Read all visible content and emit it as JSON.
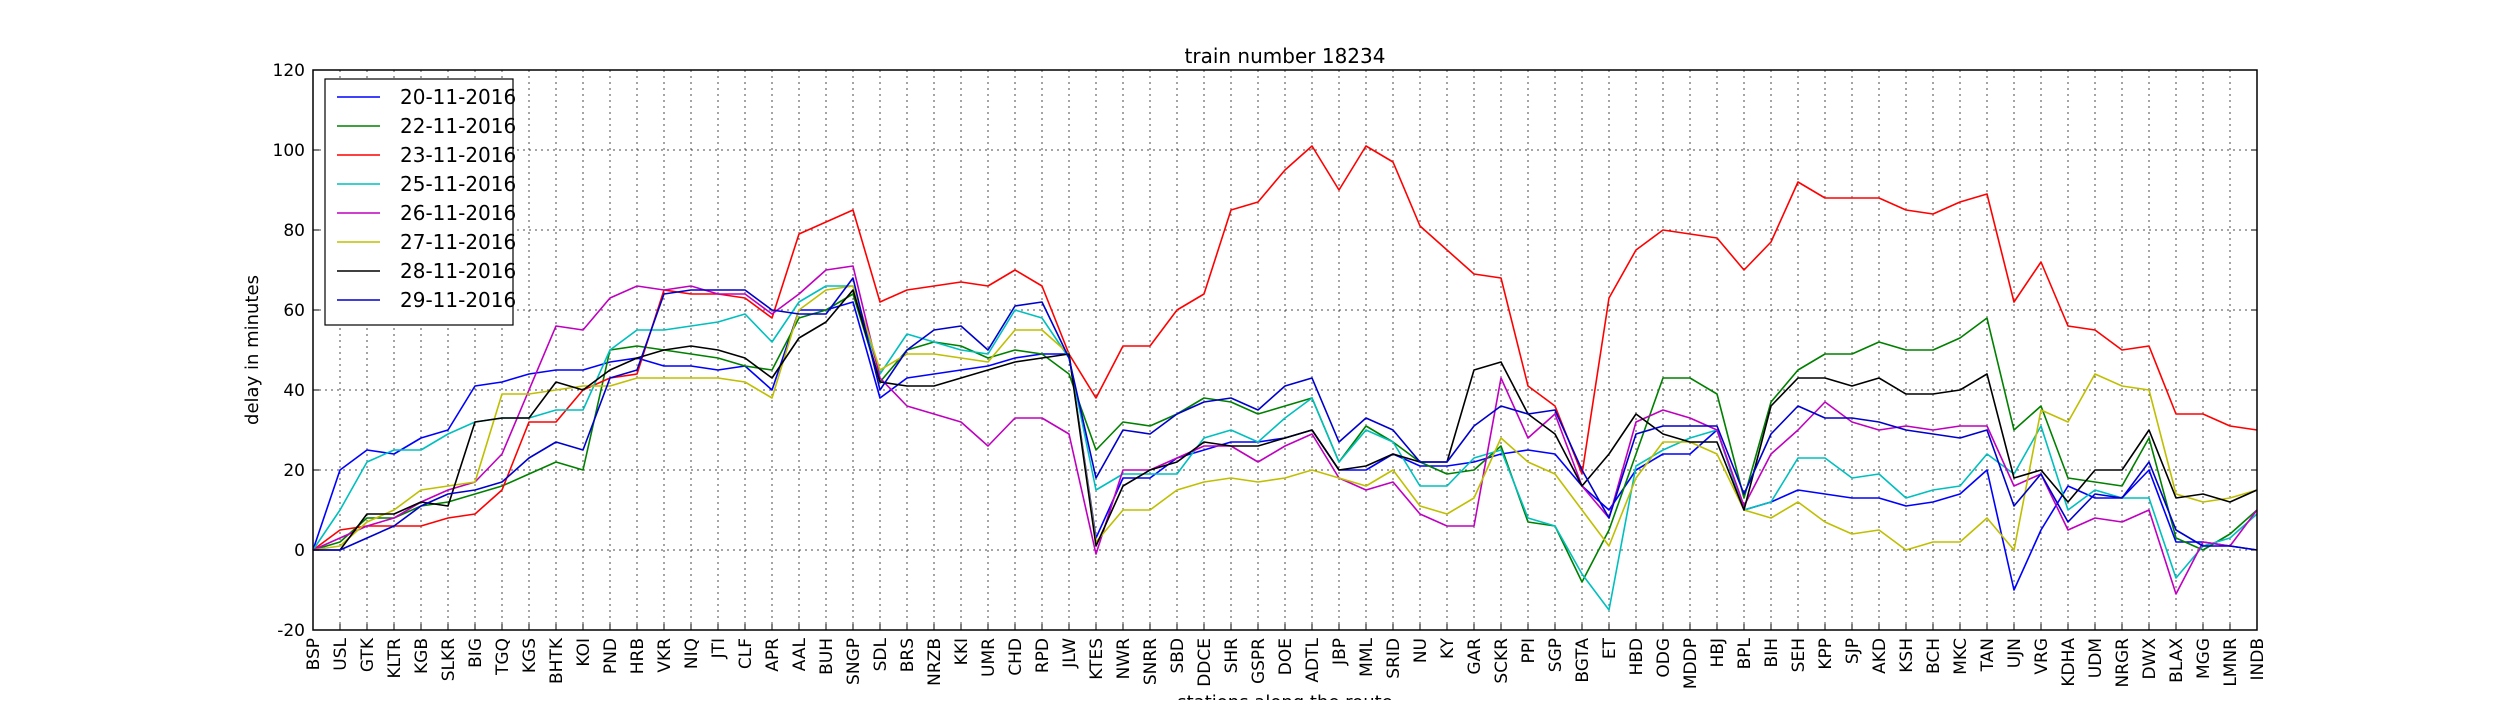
{
  "chart_data": {
    "type": "line",
    "title": "train number 18234",
    "xlabel": "stations along the route",
    "ylabel": "delay in minutes",
    "ylim": [
      -20,
      120
    ],
    "yticks": [
      -20,
      0,
      20,
      40,
      60,
      80,
      100,
      120
    ],
    "grid": true,
    "legend_position": "top-left",
    "categories": [
      "BSP",
      "USL",
      "GTK",
      "KLTR",
      "KGB",
      "SLKR",
      "BIG",
      "TGQ",
      "KGS",
      "BHTK",
      "KOI",
      "PND",
      "HRB",
      "VKR",
      "NIQ",
      "JTI",
      "CLF",
      "APR",
      "AAL",
      "BUH",
      "SNGP",
      "SDL",
      "BRS",
      "NRZB",
      "KKI",
      "UMR",
      "CHD",
      "RPD",
      "JLW",
      "KTES",
      "NWR",
      "SNRR",
      "SBD",
      "DDCE",
      "SHR",
      "GSPR",
      "DOE",
      "ADTL",
      "JBP",
      "MML",
      "SRID",
      "NU",
      "KY",
      "GAR",
      "SCKR",
      "PPI",
      "SGP",
      "BGTA",
      "ET",
      "HBD",
      "ODG",
      "MDDP",
      "HBJ",
      "BPL",
      "BIH",
      "SEH",
      "KPP",
      "SJP",
      "AKD",
      "KSH",
      "BCH",
      "MKC",
      "TAN",
      "UJN",
      "VRG",
      "KDHA",
      "UDM",
      "NRGR",
      "DWX",
      "BLAX",
      "MGG",
      "LMNR",
      "INDB"
    ],
    "series": [
      {
        "name": "20-11-2016",
        "color": "#0000ff",
        "values": [
          0,
          20,
          25,
          24,
          28,
          30,
          41,
          42,
          44,
          45,
          45,
          47,
          48,
          46,
          46,
          45,
          46,
          40,
          60,
          60,
          62,
          38,
          43,
          44,
          45,
          46,
          48,
          49,
          49,
          3,
          18,
          18,
          23,
          25,
          27,
          27,
          28,
          30,
          20,
          20,
          24,
          21,
          21,
          22,
          24,
          25,
          24,
          16,
          10,
          20,
          24,
          24,
          30,
          10,
          12,
          15,
          14,
          13,
          13,
          11,
          12,
          14,
          20,
          -10,
          5,
          16,
          13,
          13,
          20,
          2,
          2,
          1,
          0
        ]
      },
      {
        "name": "22-11-2016",
        "color": "#008000",
        "values": [
          0,
          2,
          8,
          8,
          11,
          12,
          14,
          16,
          19,
          22,
          20,
          50,
          51,
          50,
          49,
          48,
          46,
          45,
          58,
          60,
          64,
          42,
          50,
          52,
          51,
          48,
          50,
          49,
          44,
          25,
          32,
          31,
          34,
          38,
          37,
          34,
          36,
          38,
          22,
          31,
          27,
          22,
          19,
          20,
          26,
          7,
          6,
          -8,
          5,
          24,
          43,
          43,
          39,
          13,
          37,
          45,
          49,
          49,
          52,
          50,
          50,
          53,
          58,
          30,
          36,
          18,
          17,
          16,
          28,
          3,
          0,
          4,
          10
        ]
      },
      {
        "name": "23-11-2016",
        "color": "#ff0000",
        "values": [
          0,
          5,
          6,
          6,
          6,
          8,
          9,
          15,
          32,
          32,
          40,
          43,
          44,
          65,
          64,
          64,
          63,
          58,
          79,
          82,
          85,
          62,
          65,
          66,
          67,
          66,
          70,
          66,
          49,
          38,
          51,
          51,
          60,
          64,
          85,
          87,
          95,
          101,
          90,
          101,
          97,
          81,
          75,
          69,
          68,
          41,
          36,
          19,
          63,
          75,
          80,
          79,
          78,
          70,
          77,
          92,
          88,
          88,
          88,
          85,
          84,
          87,
          89,
          62,
          72,
          56,
          55,
          50,
          51,
          34,
          34,
          31,
          30
        ]
      },
      {
        "name": "25-11-2016",
        "color": "#00bfbf",
        "values": [
          0,
          10,
          22,
          25,
          25,
          29,
          32,
          33,
          33,
          35,
          35,
          50,
          55,
          55,
          56,
          57,
          59,
          52,
          62,
          66,
          66,
          44,
          54,
          52,
          50,
          49,
          60,
          58,
          48,
          15,
          19,
          19,
          19,
          28,
          30,
          27,
          33,
          38,
          22,
          30,
          27,
          16,
          16,
          23,
          25,
          8,
          6,
          -6,
          -15,
          21,
          25,
          28,
          30,
          10,
          12,
          23,
          23,
          18,
          19,
          13,
          15,
          16,
          24,
          19,
          31,
          10,
          15,
          13,
          13,
          -7,
          1,
          3,
          9
        ]
      },
      {
        "name": "26-11-2016",
        "color": "#bf00bf",
        "values": [
          0,
          3,
          6,
          8,
          12,
          15,
          17,
          24,
          40,
          56,
          55,
          63,
          66,
          65,
          66,
          64,
          64,
          59,
          64,
          70,
          71,
          43,
          36,
          34,
          32,
          26,
          33,
          33,
          29,
          -1,
          20,
          20,
          23,
          26,
          26,
          22,
          26,
          29,
          18,
          15,
          17,
          9,
          6,
          6,
          43,
          28,
          34,
          16,
          8,
          32,
          35,
          33,
          30,
          11,
          24,
          30,
          37,
          32,
          30,
          31,
          30,
          31,
          31,
          16,
          19,
          5,
          8,
          7,
          10,
          -11,
          2,
          1,
          10
        ]
      },
      {
        "name": "27-11-2016",
        "color": "#bfbf00",
        "values": [
          0,
          1,
          7,
          10,
          15,
          16,
          17,
          39,
          39,
          40,
          41,
          41,
          43,
          43,
          43,
          43,
          42,
          38,
          60,
          65,
          66,
          45,
          49,
          49,
          48,
          47,
          55,
          55,
          49,
          2,
          10,
          10,
          15,
          17,
          18,
          17,
          18,
          20,
          18,
          16,
          20,
          11,
          9,
          13,
          28,
          22,
          19,
          10,
          1,
          18,
          27,
          27,
          24,
          10,
          8,
          12,
          7,
          4,
          5,
          0,
          2,
          2,
          8,
          0,
          35,
          32,
          44,
          41,
          40,
          14,
          12,
          13,
          15
        ]
      },
      {
        "name": "28-11-2016",
        "color": "#000000",
        "values": [
          0,
          0,
          9,
          9,
          12,
          11,
          32,
          33,
          33,
          42,
          40,
          45,
          48,
          50,
          51,
          50,
          48,
          43,
          53,
          57,
          65,
          42,
          41,
          41,
          43,
          45,
          47,
          48,
          49,
          1,
          16,
          20,
          22,
          27,
          26,
          26,
          28,
          30,
          20,
          21,
          24,
          22,
          22,
          45,
          47,
          34,
          29,
          16,
          24,
          34,
          29,
          27,
          27,
          10,
          36,
          43,
          43,
          41,
          43,
          39,
          39,
          40,
          44,
          18,
          20,
          12,
          20,
          20,
          30,
          13,
          14,
          12,
          15
        ]
      },
      {
        "name": "29-11-2016",
        "color": "#0000cc",
        "values": [
          0,
          0,
          3,
          6,
          11,
          14,
          15,
          17,
          23,
          27,
          25,
          43,
          45,
          64,
          65,
          65,
          65,
          60,
          59,
          59,
          68,
          40,
          50,
          55,
          56,
          50,
          61,
          62,
          48,
          18,
          30,
          29,
          34,
          37,
          38,
          35,
          41,
          43,
          27,
          33,
          30,
          22,
          22,
          31,
          36,
          34,
          35,
          20,
          8,
          29,
          31,
          31,
          31,
          14,
          29,
          36,
          33,
          33,
          32,
          30,
          29,
          28,
          30,
          11,
          19,
          7,
          14,
          13,
          22,
          5,
          1,
          1,
          0
        ]
      }
    ]
  }
}
